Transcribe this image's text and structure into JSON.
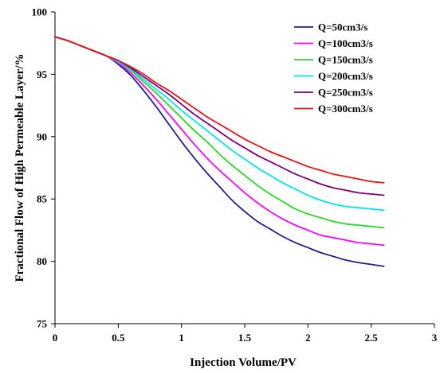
{
  "chart_data": {
    "type": "line",
    "xlabel": "Injection Volume/PV",
    "ylabel": "Fractional Flow of High Permeable Layer/%",
    "xlim": [
      0,
      3
    ],
    "ylim": [
      75,
      100
    ],
    "xticks": [
      0,
      0.5,
      1,
      1.5,
      2,
      2.5,
      3
    ],
    "xtick_labels": [
      "0",
      "0.5",
      "1",
      "1.5",
      "2",
      "2.5",
      "3"
    ],
    "yticks": [
      75,
      80,
      85,
      90,
      95,
      100
    ],
    "ytick_labels": [
      "75",
      "80",
      "85",
      "90",
      "95",
      "100"
    ],
    "grid": false,
    "legend_position": "top-right",
    "x": [
      0,
      0.1,
      0.2,
      0.3,
      0.4,
      0.5,
      0.6,
      0.7,
      0.8,
      0.9,
      1.0,
      1.1,
      1.2,
      1.3,
      1.4,
      1.5,
      1.6,
      1.7,
      1.8,
      1.9,
      2.0,
      2.1,
      2.2,
      2.3,
      2.4,
      2.5,
      2.6
    ],
    "series": [
      {
        "name": "Q=50cm3/s",
        "color": "#1f1f8f",
        "values": [
          98.0,
          97.7,
          97.3,
          96.9,
          96.5,
          95.8,
          94.9,
          93.7,
          92.4,
          91.0,
          89.6,
          88.3,
          87.1,
          86.0,
          84.9,
          84.0,
          83.2,
          82.6,
          82.0,
          81.5,
          81.1,
          80.7,
          80.4,
          80.1,
          79.9,
          79.75,
          79.6
        ]
      },
      {
        "name": "Q=100cm3/s",
        "color": "#ff00ff",
        "values": [
          98.0,
          97.7,
          97.3,
          96.9,
          96.5,
          95.9,
          95.1,
          94.1,
          93.0,
          91.8,
          90.6,
          89.4,
          88.3,
          87.3,
          86.4,
          85.5,
          84.7,
          84.0,
          83.4,
          82.9,
          82.5,
          82.1,
          81.9,
          81.7,
          81.5,
          81.4,
          81.3
        ]
      },
      {
        "name": "Q=150cm3/s",
        "color": "#22dd22",
        "values": [
          98.0,
          97.7,
          97.3,
          96.9,
          96.5,
          96.0,
          95.3,
          94.4,
          93.5,
          92.5,
          91.5,
          90.5,
          89.6,
          88.6,
          87.7,
          86.9,
          86.1,
          85.4,
          84.8,
          84.2,
          83.8,
          83.5,
          83.2,
          83.0,
          82.9,
          82.8,
          82.7
        ]
      },
      {
        "name": "Q=200cm3/s",
        "color": "#00e5ee",
        "values": [
          98.0,
          97.7,
          97.3,
          96.9,
          96.5,
          96.0,
          95.4,
          94.6,
          93.8,
          93.0,
          92.1,
          91.3,
          90.5,
          89.7,
          88.9,
          88.2,
          87.5,
          86.9,
          86.3,
          85.8,
          85.3,
          84.9,
          84.6,
          84.4,
          84.3,
          84.2,
          84.1
        ]
      },
      {
        "name": "Q=250cm3/s",
        "color": "#800080",
        "values": [
          98.0,
          97.7,
          97.3,
          96.9,
          96.5,
          96.1,
          95.5,
          94.8,
          94.1,
          93.4,
          92.6,
          91.8,
          91.1,
          90.4,
          89.7,
          89.1,
          88.5,
          88.0,
          87.5,
          87.0,
          86.6,
          86.2,
          85.9,
          85.7,
          85.5,
          85.4,
          85.3
        ]
      },
      {
        "name": "Q=300cm3/s",
        "color": "#ee1111",
        "values": [
          98.0,
          97.7,
          97.3,
          96.9,
          96.5,
          96.1,
          95.6,
          95.0,
          94.3,
          93.7,
          93.0,
          92.3,
          91.6,
          91.0,
          90.4,
          89.8,
          89.3,
          88.8,
          88.4,
          88.0,
          87.6,
          87.3,
          87.0,
          86.8,
          86.6,
          86.4,
          86.3
        ]
      }
    ]
  }
}
